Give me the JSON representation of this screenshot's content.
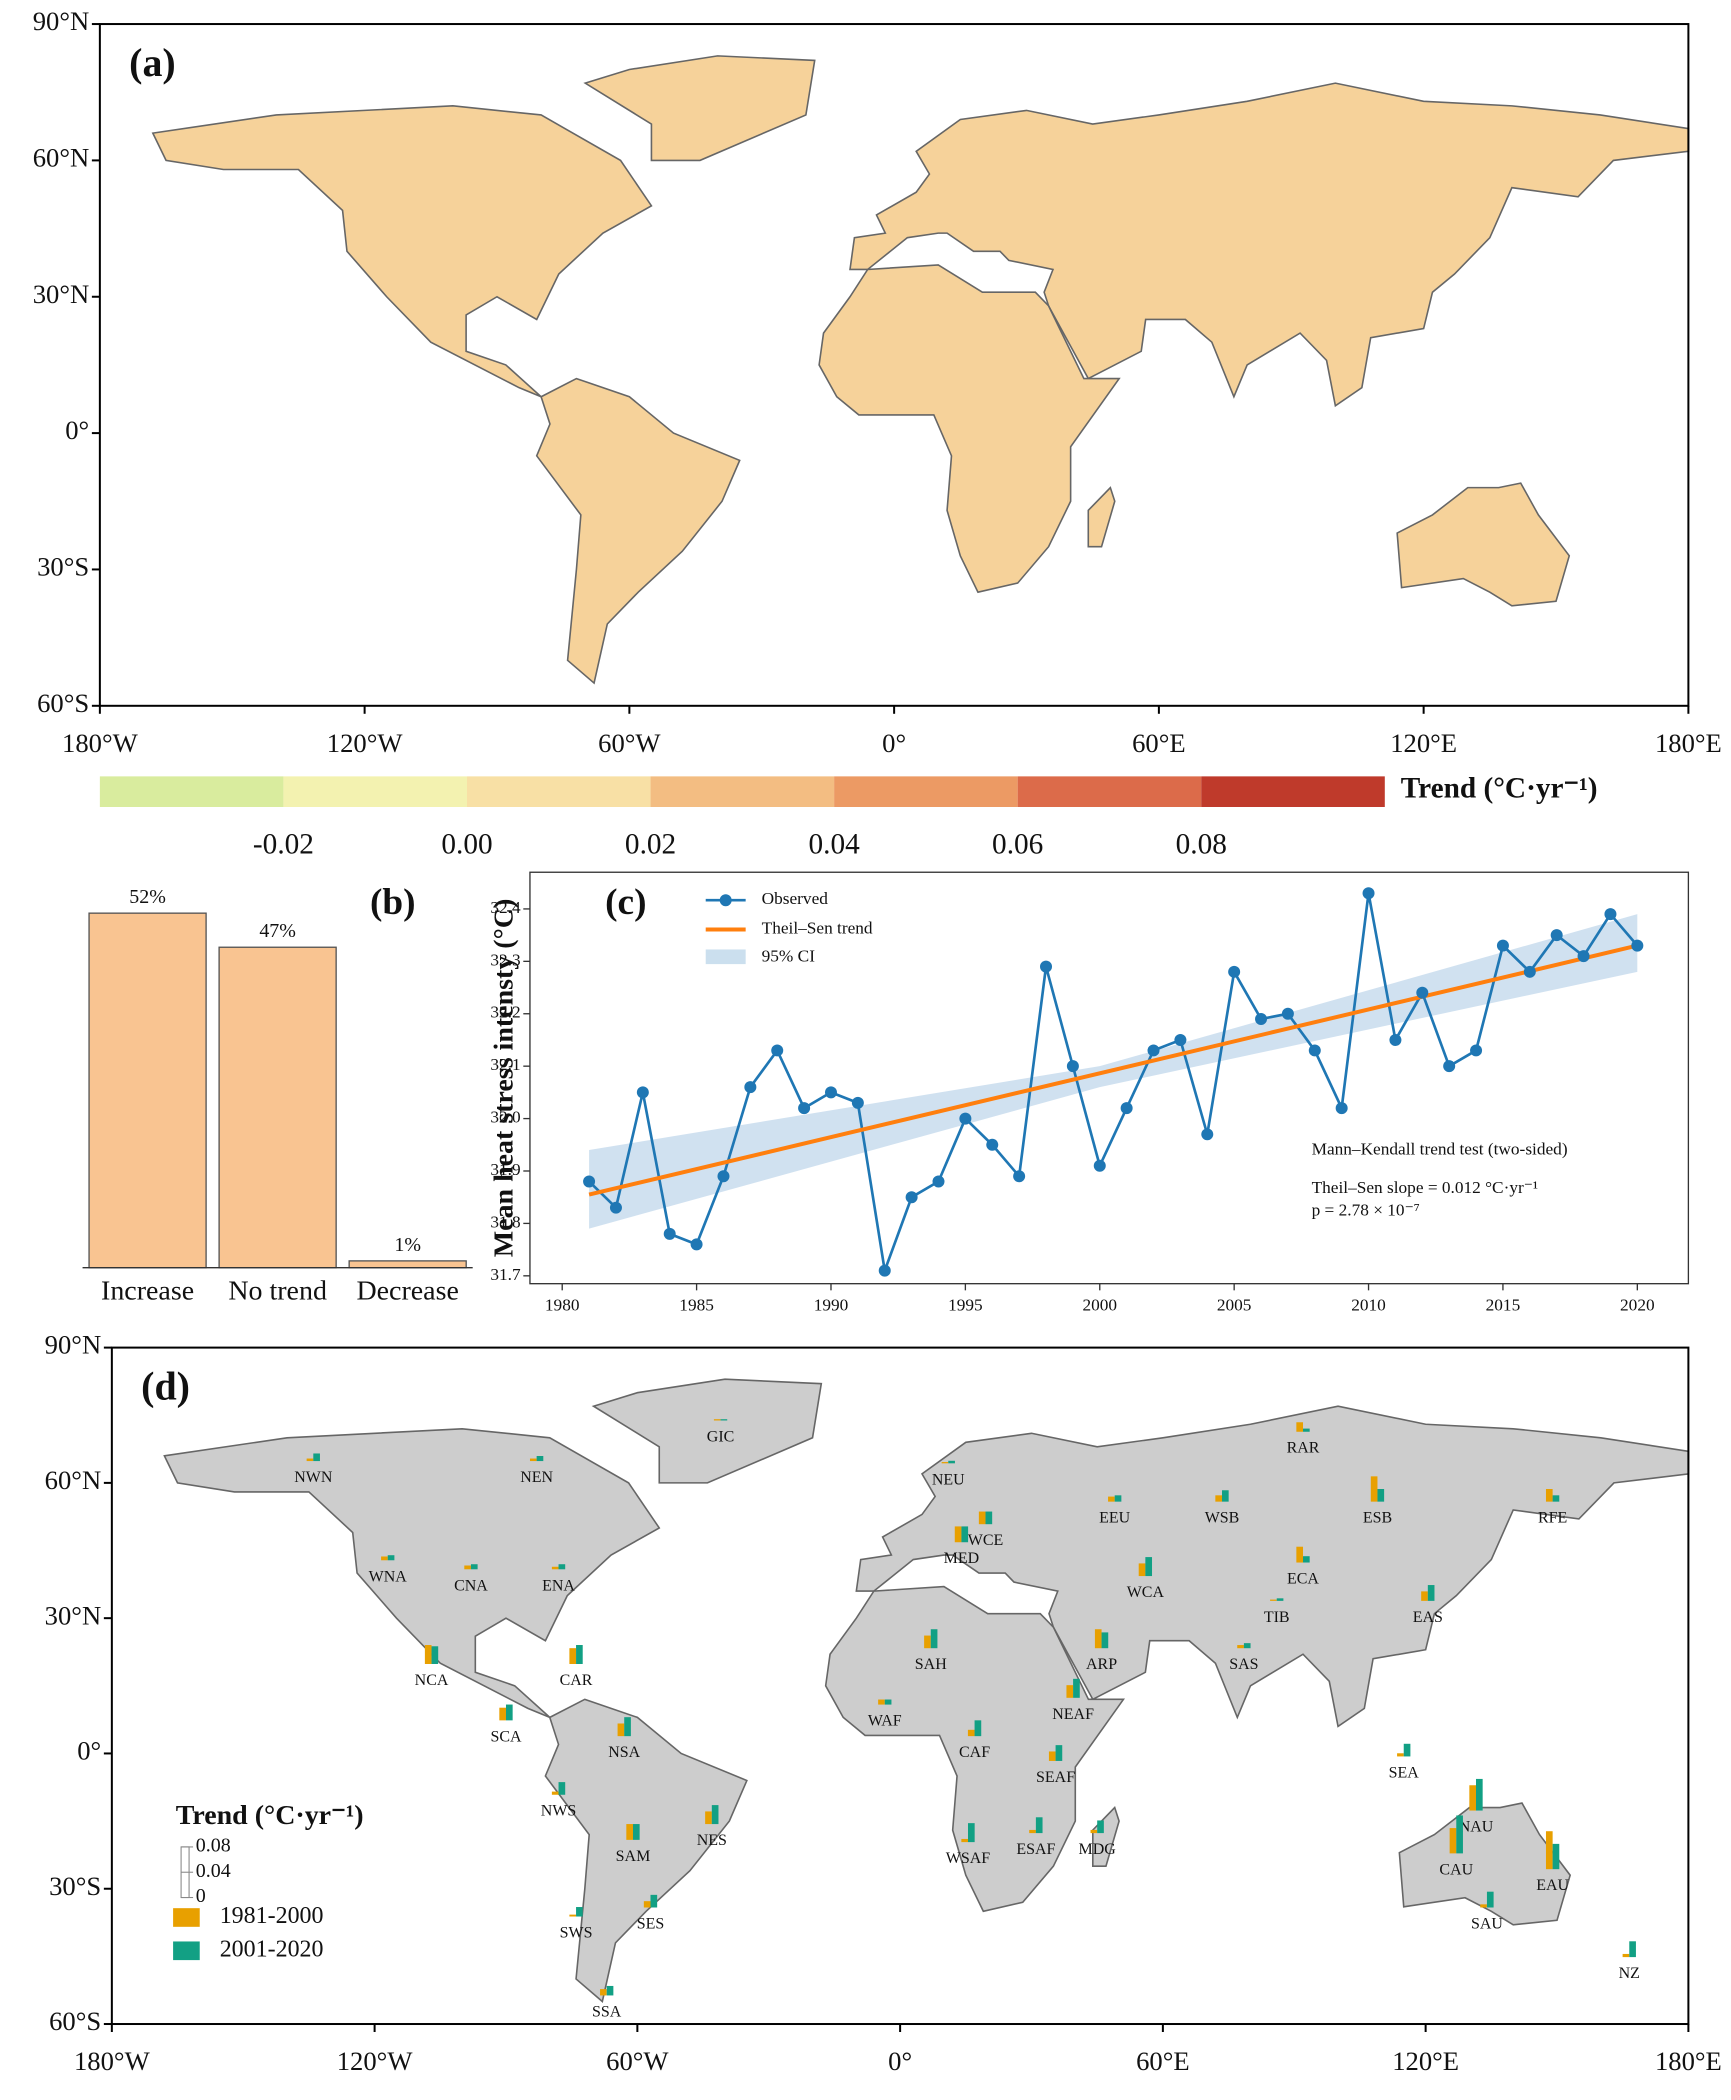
{
  "chart_data": [
    {
      "type": "map",
      "title": "(a)",
      "xlim": [
        -180,
        180
      ],
      "ylim": [
        -60,
        90
      ],
      "xticks": [
        {
          "value": -180,
          "label": "180°W"
        },
        {
          "value": -120,
          "label": "120°W"
        },
        {
          "value": -60,
          "label": "60°W"
        },
        {
          "value": 0,
          "label": "0°"
        },
        {
          "value": 60,
          "label": "60°E"
        },
        {
          "value": 120,
          "label": "120°E"
        },
        {
          "value": 180,
          "label": "180°E"
        }
      ],
      "yticks": [
        {
          "value": 90,
          "label": "90°N"
        },
        {
          "value": 60,
          "label": "60°N"
        },
        {
          "value": 30,
          "label": "30°N"
        },
        {
          "value": 0,
          "label": "0°"
        },
        {
          "value": -30,
          "label": "30°S"
        },
        {
          "value": -60,
          "label": "60°S"
        }
      ],
      "colorbar": {
        "label": "Trend (°C·yr⁻¹)",
        "bins": [
          -0.04,
          -0.02,
          0,
          0.02,
          0.04,
          0.06,
          0.08,
          0.1
        ],
        "colors": [
          "#d9ec9e",
          "#f3f2b0",
          "#f8e0a5",
          "#f3bd82",
          "#ec9a64",
          "#dc6b4a",
          "#bf3a2b"
        ],
        "ticks": [
          -0.02,
          {
            "value": 0,
            "label": "0.00"
          },
          0.02,
          0.04,
          0.06,
          0.08
        ]
      }
    },
    {
      "type": "bar",
      "title": "(b)",
      "categories": [
        "Increase",
        "No trend",
        "Decrease"
      ],
      "values": [
        52,
        47,
        1
      ],
      "value_labels": [
        "52%",
        "47%",
        "1%"
      ],
      "color": "#f9c491",
      "ylim": [
        0,
        58
      ]
    },
    {
      "type": "line",
      "title": "(c)",
      "ylabel": "Mean heat stress intensty (°C)",
      "x": [
        1981,
        1982,
        1983,
        1984,
        1985,
        1986,
        1987,
        1988,
        1989,
        1990,
        1991,
        1992,
        1993,
        1994,
        1995,
        1996,
        1997,
        1998,
        1999,
        2000,
        2001,
        2002,
        2003,
        2004,
        2005,
        2006,
        2007,
        2008,
        2009,
        2010,
        2011,
        2012,
        2013,
        2014,
        2015,
        2016,
        2017,
        2018,
        2019,
        2020
      ],
      "series": [
        {
          "name": "Observed",
          "color": "#1f77b4",
          "values": [
            31.88,
            31.83,
            32.05,
            31.78,
            31.76,
            31.89,
            32.06,
            32.13,
            32.02,
            32.05,
            32.03,
            31.71,
            31.85,
            31.88,
            32.0,
            31.95,
            31.89,
            32.29,
            32.1,
            31.91,
            32.02,
            32.13,
            32.15,
            31.97,
            32.28,
            32.19,
            32.2,
            32.13,
            32.02,
            32.43,
            32.15,
            32.24,
            32.1,
            32.13,
            32.33,
            32.28,
            32.35,
            32.31,
            32.39,
            32.33
          ]
        }
      ],
      "trend": {
        "name": "Theil–Sen trend",
        "color": "#ff7f0e",
        "x": [
          1981,
          2020
        ],
        "values": [
          31.855,
          32.33
        ]
      },
      "ci": {
        "name": "95% CI",
        "color": "#a9c9e3",
        "x": [
          1981,
          2000,
          2020
        ],
        "lower": [
          31.79,
          32.06,
          32.28
        ],
        "upper": [
          31.94,
          32.1,
          32.39
        ]
      },
      "xlim": [
        1978.8,
        2021.9
      ],
      "ylim": [
        31.685,
        32.47
      ],
      "xticks": [
        1980,
        1985,
        1990,
        1995,
        2000,
        2005,
        2010,
        2015,
        2020
      ],
      "yticks": [
        31.7,
        31.8,
        31.9,
        {
          "value": 32,
          "label": "32.0"
        },
        32.1,
        32.2,
        32.3,
        32.4
      ],
      "annotations": [
        "Mann–Kendall trend test (two-sided)",
        "Theil–Sen slope = 0.012 °C·yr⁻¹",
        "p = 2.78 × 10⁻⁷"
      ]
    },
    {
      "type": "map_bars",
      "title": "(d)",
      "xlim": [
        -180,
        180
      ],
      "ylim": [
        -60,
        90
      ],
      "xticks": [
        {
          "value": -180,
          "label": "180°W"
        },
        {
          "value": -120,
          "label": "120°W"
        },
        {
          "value": -60,
          "label": "60°W"
        },
        {
          "value": 0,
          "label": "0°"
        },
        {
          "value": 60,
          "label": "60°E"
        },
        {
          "value": 120,
          "label": "120°E"
        },
        {
          "value": 180,
          "label": "180°E"
        }
      ],
      "yticks": [
        {
          "value": 90,
          "label": "90°N"
        },
        {
          "value": 60,
          "label": "60°N"
        },
        {
          "value": 30,
          "label": "30°N"
        },
        {
          "value": 0,
          "label": "0°"
        },
        {
          "value": -30,
          "label": "30°S"
        },
        {
          "value": -60,
          "label": "60°S"
        }
      ],
      "legend_title": "Trend (°C·yr⁻¹)",
      "scale_ticks": [
        0,
        0.04,
        0.08
      ],
      "series": [
        {
          "name": "1981-2000",
          "color": "#e8a000"
        },
        {
          "name": "2001-2020",
          "color": "#12a084"
        }
      ],
      "regions": [
        {
          "name": "NWN",
          "lon": -134,
          "lat": 61,
          "values": [
            0.004,
            0.012
          ]
        },
        {
          "name": "NEN",
          "lon": -83,
          "lat": 61,
          "values": [
            0.004,
            0.008
          ]
        },
        {
          "name": "GIC",
          "lon": -41,
          "lat": 70,
          "values": [
            0.002,
            0.002
          ]
        },
        {
          "name": "WNA",
          "lon": -117,
          "lat": 39,
          "values": [
            0.006,
            0.008
          ]
        },
        {
          "name": "CNA",
          "lon": -98,
          "lat": 37,
          "values": [
            0.006,
            0.008
          ]
        },
        {
          "name": "ENA",
          "lon": -78,
          "lat": 37,
          "values": [
            0.004,
            0.008
          ]
        },
        {
          "name": "NCA",
          "lon": -107,
          "lat": 16,
          "values": [
            0.03,
            0.028
          ]
        },
        {
          "name": "SCA",
          "lon": -90,
          "lat": 3.5,
          "values": [
            0.02,
            0.025
          ]
        },
        {
          "name": "CAR",
          "lon": -74,
          "lat": 16,
          "values": [
            0.025,
            0.03
          ]
        },
        {
          "name": "NWS",
          "lon": -78,
          "lat": -13,
          "values": [
            0.005,
            0.02
          ]
        },
        {
          "name": "NSA",
          "lon": -63,
          "lat": 0,
          "values": [
            0.02,
            0.03
          ]
        },
        {
          "name": "SAM",
          "lon": -61,
          "lat": -23,
          "values": [
            0.025,
            0.025
          ]
        },
        {
          "name": "NES",
          "lon": -43,
          "lat": -19.5,
          "values": [
            0.02,
            0.03
          ]
        },
        {
          "name": "SES",
          "lon": -57,
          "lat": -38,
          "values": [
            0.01,
            0.02
          ]
        },
        {
          "name": "SWS",
          "lon": -74,
          "lat": -40,
          "values": [
            0.003,
            0.015
          ]
        },
        {
          "name": "SSA",
          "lon": -67,
          "lat": -57.5,
          "values": [
            0.01,
            0.015
          ]
        },
        {
          "name": "NEU",
          "lon": 11,
          "lat": 60.5,
          "values": [
            0.002,
            0.004
          ]
        },
        {
          "name": "WCE",
          "lon": 19.5,
          "lat": 47,
          "values": [
            0.02,
            0.02
          ]
        },
        {
          "name": "EEU",
          "lon": 49,
          "lat": 52,
          "values": [
            0.008,
            0.01
          ]
        },
        {
          "name": "WSB",
          "lon": 73.5,
          "lat": 52,
          "values": [
            0.01,
            0.018
          ]
        },
        {
          "name": "ESB",
          "lon": 109,
          "lat": 52,
          "values": [
            0.04,
            0.02
          ]
        },
        {
          "name": "RAR",
          "lon": 92,
          "lat": 67.5,
          "values": [
            0.015,
            0.005
          ]
        },
        {
          "name": "RFE",
          "lon": 149,
          "lat": 52,
          "values": [
            0.02,
            0.01
          ]
        },
        {
          "name": "MED",
          "lon": 14,
          "lat": 43,
          "values": [
            0.025,
            0.025
          ]
        },
        {
          "name": "WCA",
          "lon": 56,
          "lat": 35.5,
          "values": [
            0.02,
            0.03
          ]
        },
        {
          "name": "ECA",
          "lon": 92,
          "lat": 38.5,
          "values": [
            0.025,
            0.01
          ]
        },
        {
          "name": "TIB",
          "lon": 86,
          "lat": 30,
          "values": [
            0.002,
            0.004
          ]
        },
        {
          "name": "EAS",
          "lon": 120.5,
          "lat": 30,
          "values": [
            0.015,
            0.025
          ]
        },
        {
          "name": "SAH",
          "lon": 7,
          "lat": 19.5,
          "values": [
            0.02,
            0.03
          ]
        },
        {
          "name": "ARP",
          "lon": 46,
          "lat": 19.5,
          "values": [
            0.03,
            0.025
          ]
        },
        {
          "name": "SAS",
          "lon": 78.5,
          "lat": 19.5,
          "values": [
            0.005,
            0.008
          ]
        },
        {
          "name": "WAF",
          "lon": -3.5,
          "lat": 7,
          "values": [
            0.008,
            0.008
          ]
        },
        {
          "name": "NEAF",
          "lon": 39.5,
          "lat": 8.5,
          "values": [
            0.02,
            0.03
          ]
        },
        {
          "name": "CAF",
          "lon": 17,
          "lat": 0,
          "values": [
            0.01,
            0.025
          ]
        },
        {
          "name": "SEAF",
          "lon": 35.5,
          "lat": -5.5,
          "values": [
            0.015,
            0.025
          ]
        },
        {
          "name": "SEA",
          "lon": 115,
          "lat": -4.5,
          "values": [
            0.005,
            0.02
          ]
        },
        {
          "name": "WSAF",
          "lon": 15.5,
          "lat": -23.5,
          "values": [
            0.005,
            0.03
          ]
        },
        {
          "name": "ESAF",
          "lon": 31,
          "lat": -21.5,
          "values": [
            0.005,
            0.025
          ]
        },
        {
          "name": "MDG",
          "lon": 45,
          "lat": -21.5,
          "values": [
            0.005,
            0.02
          ]
        },
        {
          "name": "NAU",
          "lon": 131.5,
          "lat": -16.5,
          "values": [
            0.04,
            0.05
          ]
        },
        {
          "name": "CAU",
          "lon": 127,
          "lat": -26,
          "values": [
            0.04,
            0.06
          ]
        },
        {
          "name": "EAU",
          "lon": 149,
          "lat": -29.5,
          "values": [
            0.06,
            0.04
          ]
        },
        {
          "name": "SAU",
          "lon": 134,
          "lat": -38,
          "values": [
            0.005,
            0.025
          ]
        },
        {
          "name": "NZ",
          "lon": 166.5,
          "lat": -49,
          "values": [
            0.005,
            0.025
          ]
        }
      ]
    }
  ]
}
